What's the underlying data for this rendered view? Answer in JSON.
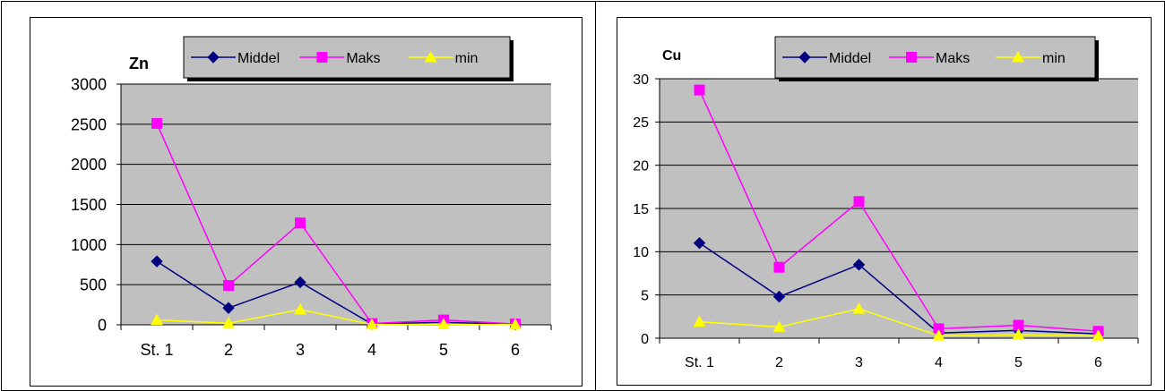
{
  "chart_data": [
    {
      "type": "line",
      "title": "Zn",
      "categories": [
        "St. 1",
        "2",
        "3",
        "4",
        "5",
        "6"
      ],
      "ylim": [
        0,
        3000
      ],
      "yticks": [
        0,
        500,
        1000,
        1500,
        2000,
        2500,
        3000
      ],
      "grid": true,
      "legend": "top",
      "series": [
        {
          "name": "Middel",
          "color": "#000080",
          "marker": "diamond",
          "values": [
            790,
            210,
            530,
            10,
            30,
            5
          ]
        },
        {
          "name": "Maks",
          "color": "#ff00ff",
          "marker": "square",
          "values": [
            2510,
            490,
            1270,
            15,
            60,
            10
          ]
        },
        {
          "name": "min",
          "color": "#ffff00",
          "marker": "triangle",
          "values": [
            60,
            20,
            190,
            3,
            5,
            2
          ]
        }
      ]
    },
    {
      "type": "line",
      "title": "Cu",
      "categories": [
        "St. 1",
        "2",
        "3",
        "4",
        "5",
        "6"
      ],
      "ylim": [
        0,
        30
      ],
      "yticks": [
        0,
        5,
        10,
        15,
        20,
        25,
        30
      ],
      "grid": true,
      "legend": "top",
      "series": [
        {
          "name": "Middel",
          "color": "#000080",
          "marker": "diamond",
          "values": [
            11.0,
            4.8,
            8.5,
            0.6,
            0.9,
            0.5
          ]
        },
        {
          "name": "Maks",
          "color": "#ff00ff",
          "marker": "square",
          "values": [
            28.7,
            8.2,
            15.8,
            1.1,
            1.5,
            0.8
          ]
        },
        {
          "name": "min",
          "color": "#ffff00",
          "marker": "triangle",
          "values": [
            1.9,
            1.3,
            3.4,
            0.3,
            0.4,
            0.3
          ]
        }
      ]
    }
  ]
}
